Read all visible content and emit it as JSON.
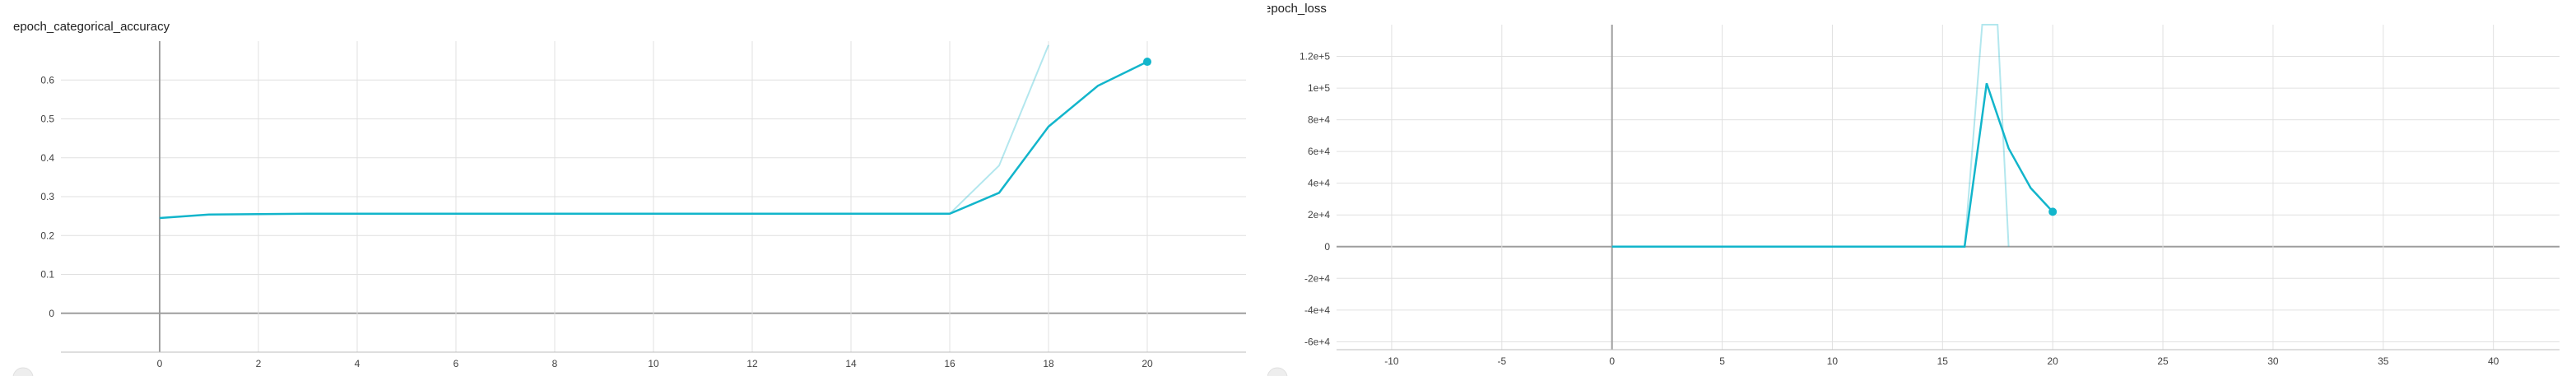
{
  "charts_ui": {
    "left_title": "epoch_categorical_accuracy",
    "right_title": "epoch_loss"
  },
  "colors": {
    "series": "#12b5cb",
    "grid": "#e0e0e0",
    "zero_axis": "#9e9e9e",
    "background": "#ffffff"
  },
  "chart_data": [
    {
      "type": "line",
      "title": "epoch_categorical_accuracy",
      "xlabel": "",
      "ylabel": "",
      "xlim": [
        -2,
        22
      ],
      "ylim": [
        -0.1,
        0.7
      ],
      "x_ticks": [
        0,
        2,
        4,
        6,
        8,
        10,
        12,
        14,
        16,
        18,
        20
      ],
      "x_tick_labels": [
        "0",
        "2",
        "4",
        "6",
        "8",
        "10",
        "12",
        "14",
        "16",
        "18",
        "20"
      ],
      "y_ticks": [
        0,
        0.1,
        0.2,
        0.3,
        0.4,
        0.5,
        0.6
      ],
      "y_tick_labels": [
        "0",
        "0.1",
        "0.2",
        "0.3",
        "0.4",
        "0.5",
        "0.6"
      ],
      "grid": true,
      "series": [
        {
          "style": "smoothed",
          "x": [
            0,
            1,
            2,
            3,
            4,
            5,
            6,
            7,
            8,
            9,
            10,
            11,
            12,
            13,
            14,
            15,
            16,
            17,
            18,
            19,
            20
          ],
          "y": [
            0.245,
            0.254,
            0.255,
            0.256,
            0.256,
            0.256,
            0.256,
            0.256,
            0.256,
            0.256,
            0.256,
            0.256,
            0.256,
            0.256,
            0.256,
            0.256,
            0.256,
            0.31,
            0.48,
            0.585,
            0.647
          ]
        },
        {
          "style": "raw",
          "x": [
            16,
            17,
            18
          ],
          "y": [
            0.256,
            0.38,
            0.69
          ]
        }
      ]
    },
    {
      "type": "line",
      "title": "epoch_loss",
      "xlabel": "",
      "ylabel": "",
      "xlim": [
        -12.5,
        43
      ],
      "ylim": [
        -65000,
        140000
      ],
      "x_ticks": [
        -10,
        -5,
        0,
        5,
        10,
        15,
        20,
        25,
        30,
        35,
        40
      ],
      "x_tick_labels": [
        "-10",
        "-5",
        "0",
        "5",
        "10",
        "15",
        "20",
        "25",
        "30",
        "35",
        "40"
      ],
      "y_ticks": [
        -60000,
        -40000,
        -20000,
        0,
        20000,
        40000,
        60000,
        80000,
        100000,
        120000
      ],
      "y_tick_labels": [
        "-6e+4",
        "-4e+4",
        "-2e+4",
        "0",
        "2e+4",
        "4e+4",
        "6e+4",
        "8e+4",
        "1e+5",
        "1.2e+5"
      ],
      "grid": true,
      "series": [
        {
          "style": "smoothed",
          "x": [
            0,
            1,
            2,
            3,
            4,
            5,
            6,
            7,
            8,
            9,
            10,
            11,
            12,
            13,
            14,
            15,
            16,
            17,
            18,
            19,
            20
          ],
          "y": [
            0,
            0,
            0,
            0,
            0,
            0,
            0,
            0,
            0,
            0,
            0,
            0,
            0,
            0,
            0,
            0,
            0,
            103000,
            62000,
            37000,
            22000
          ]
        },
        {
          "style": "raw",
          "x": [
            16,
            16.8,
            17.5,
            18
          ],
          "y": [
            0,
            140000,
            140000,
            0
          ]
        }
      ]
    }
  ]
}
